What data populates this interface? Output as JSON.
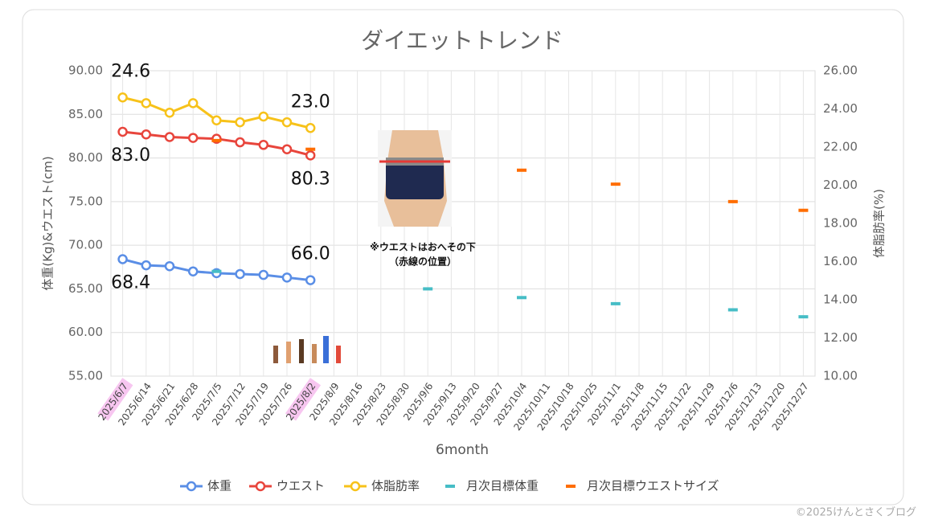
{
  "chart_data": {
    "type": "line",
    "title": "ダイエットトレンド",
    "ylabel": "体重(Kg)&ウエスト(cm)",
    "y2label": "体脂肪率(%)",
    "xlabel": "6month",
    "watermark": "©2025けんとさくブログ",
    "annotations": [
      "※ウエストはおへその下",
      "（赤線の位置）"
    ],
    "categories": [
      "2025/6/7",
      "2025/6/14",
      "2025/6/21",
      "2025/6/28",
      "2025/7/5",
      "2025/7/12",
      "2025/7/19",
      "2025/7/26",
      "2025/8/2",
      "2025/8/9",
      "2025/8/16",
      "2025/8/23",
      "2025/8/30",
      "2025/9/6",
      "2025/9/13",
      "2025/9/20",
      "2025/9/27",
      "2025/10/4",
      "2025/10/11",
      "2025/10/18",
      "2025/10/25",
      "2025/11/1",
      "2025/11/8",
      "2025/11/15",
      "2025/11/22",
      "2025/11/29",
      "2025/12/6",
      "2025/12/13",
      "2025/12/20",
      "2025/12/27"
    ],
    "highlight": [
      "2025/6/7",
      "2025/8/2"
    ],
    "ylim": [
      55,
      90
    ],
    "yticks": [
      {
        "value": 55,
        "label": "55.00"
      },
      {
        "value": 60,
        "label": "60.00"
      },
      {
        "value": 65,
        "label": "65.00"
      },
      {
        "value": 70,
        "label": "70.00"
      },
      {
        "value": 75,
        "label": "75.00"
      },
      {
        "value": 80,
        "label": "80.00"
      },
      {
        "value": 85,
        "label": "85.00"
      },
      {
        "value": 90,
        "label": "90.00"
      }
    ],
    "y2lim": [
      10,
      26
    ],
    "y2ticks": [
      {
        "value": 10,
        "label": "10.00"
      },
      {
        "value": 12,
        "label": "12.00"
      },
      {
        "value": 14,
        "label": "14.00"
      },
      {
        "value": 16,
        "label": "16.00"
      },
      {
        "value": 18,
        "label": "18.00"
      },
      {
        "value": 20,
        "label": "20.00"
      },
      {
        "value": 22,
        "label": "22.00"
      },
      {
        "value": 24,
        "label": "24.00"
      },
      {
        "value": 26,
        "label": "26.00"
      }
    ],
    "grid": true,
    "legend": "bottom",
    "series": [
      {
        "name": "体重",
        "color": "#5a8ee6",
        "mark": "line",
        "values": [
          68.4,
          67.7,
          67.6,
          67.0,
          66.8,
          66.7,
          66.6,
          66.3,
          66.0,
          null,
          null,
          null,
          null,
          null,
          null,
          null,
          null,
          null,
          null,
          null,
          null,
          null,
          null,
          null,
          null,
          null,
          null,
          null,
          null,
          null
        ],
        "value_labels": [
          "68.4",
          null,
          null,
          null,
          null,
          null,
          null,
          null,
          "66.0",
          null,
          null,
          null,
          null,
          null,
          null,
          null,
          null,
          null,
          null,
          null,
          null,
          null,
          null,
          null,
          null,
          null,
          null,
          null,
          null,
          null
        ]
      },
      {
        "name": "ウエスト",
        "color": "#e8453c",
        "mark": "line",
        "values": [
          83.0,
          82.7,
          82.4,
          82.3,
          82.2,
          81.8,
          81.5,
          81.0,
          80.3,
          null,
          null,
          null,
          null,
          null,
          null,
          null,
          null,
          null,
          null,
          null,
          null,
          null,
          null,
          null,
          null,
          null,
          null,
          null,
          null,
          null
        ],
        "value_labels": [
          "83.0",
          null,
          null,
          null,
          null,
          null,
          null,
          null,
          "80.3",
          null,
          null,
          null,
          null,
          null,
          null,
          null,
          null,
          null,
          null,
          null,
          null,
          null,
          null,
          null,
          null,
          null,
          null,
          null,
          null,
          null
        ]
      },
      {
        "name": "体脂肪率",
        "color": "#f7c21a",
        "mark": "line",
        "axis": "y2",
        "values": [
          24.6,
          24.3,
          23.8,
          24.3,
          23.4,
          23.3,
          23.6,
          23.3,
          23.0,
          null,
          null,
          null,
          null,
          null,
          null,
          null,
          null,
          null,
          null,
          null,
          null,
          null,
          null,
          null,
          null,
          null,
          null,
          null,
          null,
          null
        ],
        "value_labels": [
          "24.6",
          null,
          null,
          null,
          null,
          null,
          null,
          null,
          "23.0",
          null,
          null,
          null,
          null,
          null,
          null,
          null,
          null,
          null,
          null,
          null,
          null,
          null,
          null,
          null,
          null,
          null,
          null,
          null,
          null,
          null
        ]
      },
      {
        "name": "月次目標体重",
        "color": "#46bdc6",
        "mark": "dash",
        "values": [
          null,
          null,
          null,
          null,
          67.0,
          null,
          null,
          null,
          null,
          null,
          null,
          null,
          null,
          65.0,
          null,
          null,
          null,
          64.0,
          null,
          null,
          null,
          63.3,
          null,
          null,
          null,
          null,
          62.6,
          null,
          null,
          61.8
        ]
      },
      {
        "name": "月次目標ウエストサイズ",
        "color": "#ff6d01",
        "mark": "dash",
        "values": [
          null,
          null,
          null,
          null,
          82.0,
          null,
          null,
          null,
          81.0,
          null,
          null,
          null,
          null,
          null,
          null,
          null,
          null,
          78.6,
          null,
          null,
          null,
          77.0,
          null,
          null,
          null,
          null,
          75.0,
          null,
          null,
          74.0
        ]
      }
    ]
  }
}
